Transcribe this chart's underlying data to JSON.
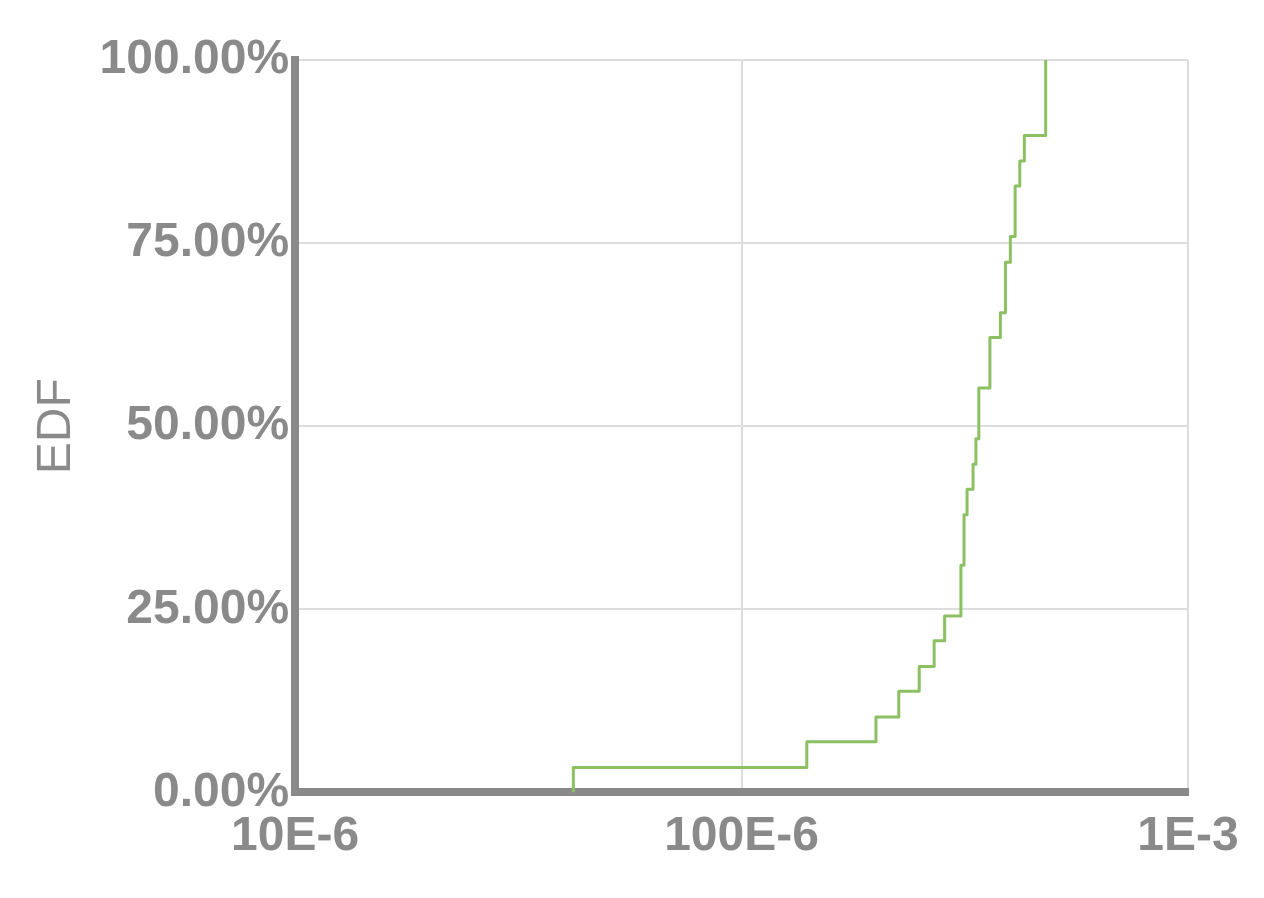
{
  "chart_data": {
    "type": "step",
    "ylabel": "EDF",
    "log": "x",
    "grid": true,
    "color": "#8cc063",
    "marker": "none",
    "x": [
      4.2e-05,
      4.2e-05,
      0.00014,
      0.0002,
      0.000225,
      0.00025,
      0.00027,
      0.000285,
      0.00031,
      0.000315,
      0.00032,
      0.00033,
      0.000335,
      0.00034,
      0.00036,
      0.00038,
      0.00039,
      0.00039,
      0.0004,
      0.00041,
      0.00041,
      0.00042,
      0.00043,
      0.00048
    ],
    "values": [
      0,
      3.4,
      6.9,
      10.3,
      13.8,
      17.2,
      20.7,
      24.1,
      31,
      37.9,
      41.4,
      44.8,
      48.3,
      55.2,
      62.1,
      65.5,
      69.0,
      72.4,
      75.9,
      79.3,
      82.8,
      86.2,
      89.7,
      100
    ],
    "xlim": [
      1e-05,
      0.001
    ],
    "xticks": [
      {
        "value": 1e-05,
        "label": "10E-6"
      },
      {
        "value": 0.0001,
        "label": "100E-6"
      },
      {
        "value": 0.001,
        "label": "1E-3"
      }
    ],
    "ylim": [
      0,
      100
    ],
    "yticks": [
      {
        "value": 0,
        "label": "0.00%"
      },
      {
        "value": 25,
        "label": "25.00%"
      },
      {
        "value": 50,
        "label": "50.00%"
      },
      {
        "value": 75,
        "label": "75.00%"
      },
      {
        "value": 100,
        "label": "100.00%"
      }
    ]
  }
}
